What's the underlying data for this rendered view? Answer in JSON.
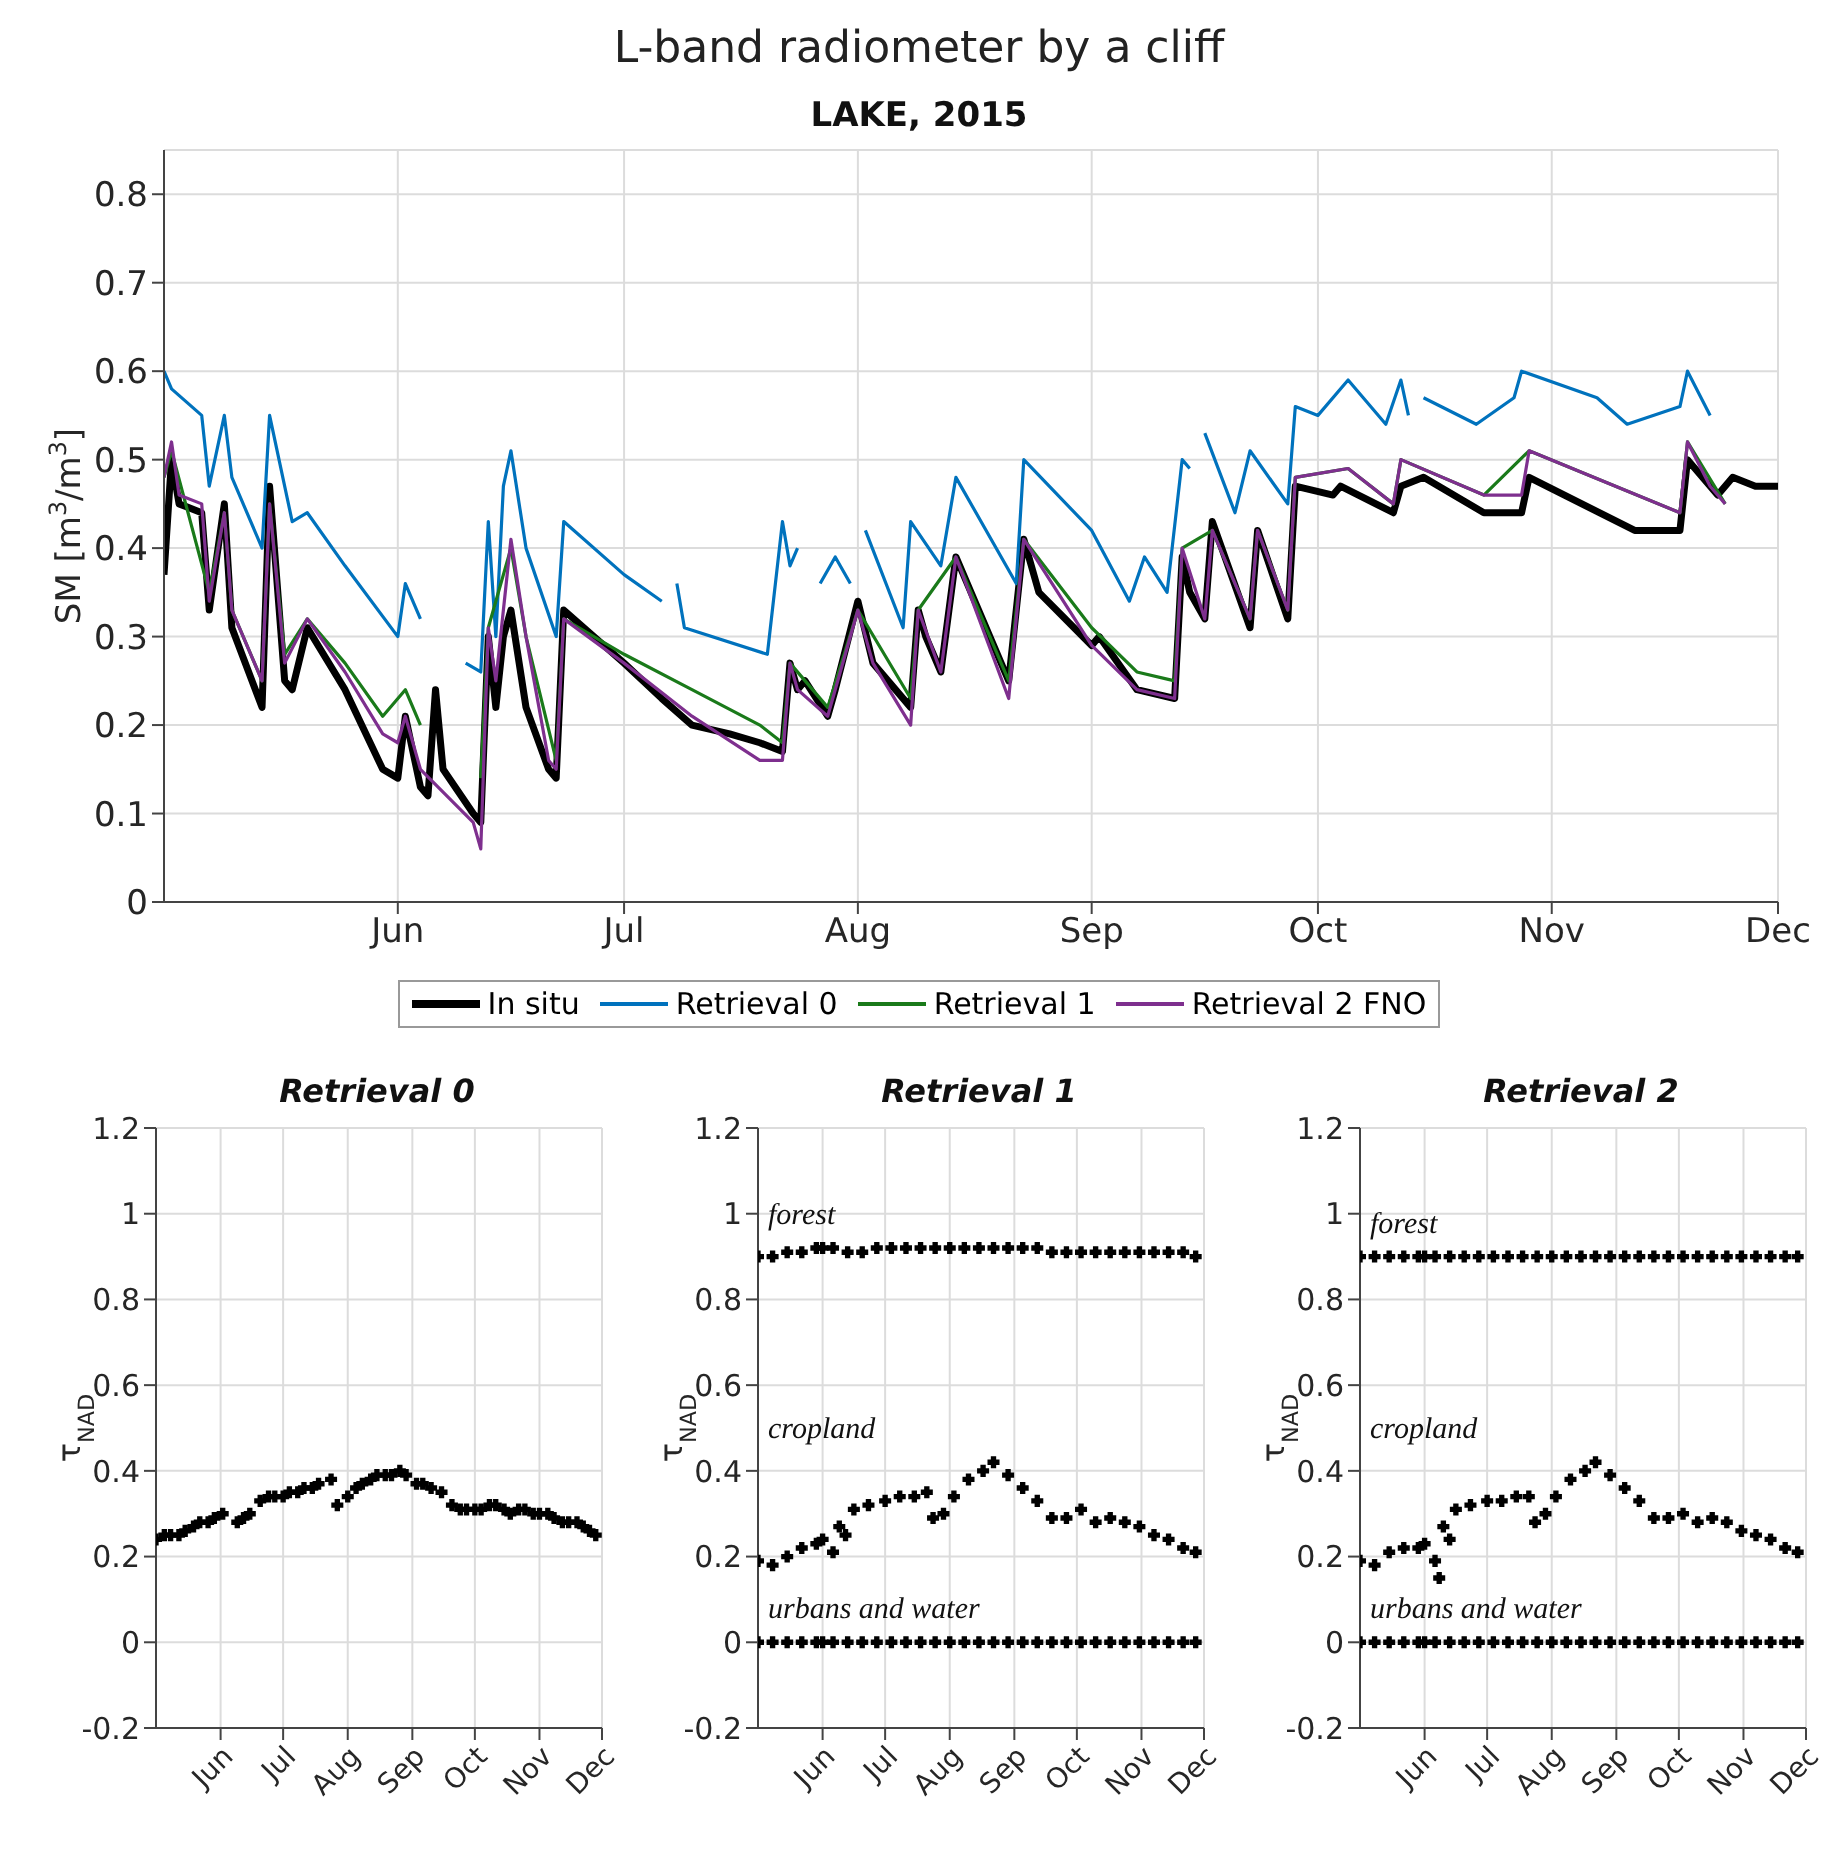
{
  "chart_data": [
    {
      "type": "line",
      "title": "L-band radiometer by a cliff",
      "subtitle": "LAKE, 2015",
      "ylabel": "SM [m$^{3}$/m$^{3}$]",
      "xlim": [
        "2015-05-01",
        "2015-12-01"
      ],
      "xticks": [
        {
          "value": "2015-06-01",
          "label": "Jun"
        },
        {
          "value": "2015-07-01",
          "label": "Jul"
        },
        {
          "value": "2015-08-01",
          "label": "Aug"
        },
        {
          "value": "2015-09-01",
          "label": "Sep"
        },
        {
          "value": "2015-10-01",
          "label": "Oct"
        },
        {
          "value": "2015-11-01",
          "label": "Nov"
        },
        {
          "value": "2015-12-01",
          "label": "Dec"
        }
      ],
      "ylim": [
        0,
        0.85
      ],
      "yticks": [
        0,
        0.1,
        0.2,
        0.3,
        0.4,
        0.5,
        0.6,
        0.7,
        0.8
      ],
      "grid": true,
      "legend": "bottom",
      "series": [
        {
          "name": "In situ",
          "color": "#000000",
          "x": [
            "2015-05-01",
            "2015-05-02",
            "2015-05-03",
            "2015-05-06",
            "2015-05-07",
            "2015-05-09",
            "2015-05-10",
            "2015-05-14",
            "2015-05-15",
            "2015-05-17",
            "2015-05-18",
            "2015-05-20",
            "2015-05-25",
            "2015-05-30",
            "2015-06-01",
            "2015-06-02",
            "2015-06-04",
            "2015-06-05",
            "2015-06-06",
            "2015-06-07",
            "2015-06-11",
            "2015-06-12",
            "2015-06-13",
            "2015-06-14",
            "2015-06-15",
            "2015-06-16",
            "2015-06-18",
            "2015-06-21",
            "2015-06-22",
            "2015-06-23",
            "2015-07-01",
            "2015-07-06",
            "2015-07-10",
            "2015-07-15",
            "2015-07-19",
            "2015-07-22",
            "2015-07-23",
            "2015-07-24",
            "2015-07-25",
            "2015-07-28",
            "2015-07-29",
            "2015-08-01",
            "2015-08-03",
            "2015-08-08",
            "2015-08-09",
            "2015-08-10",
            "2015-08-12",
            "2015-08-14",
            "2015-08-21",
            "2015-08-23",
            "2015-08-25",
            "2015-09-01",
            "2015-09-02",
            "2015-09-07",
            "2015-09-12",
            "2015-09-13",
            "2015-09-14",
            "2015-09-16",
            "2015-09-17",
            "2015-09-22",
            "2015-09-23",
            "2015-09-27",
            "2015-09-28",
            "2015-10-03",
            "2015-10-04",
            "2015-10-11",
            "2015-10-12",
            "2015-10-15",
            "2015-10-23",
            "2015-10-28",
            "2015-10-29",
            "2015-11-12",
            "2015-11-18",
            "2015-11-19",
            "2015-11-23",
            "2015-11-25",
            "2015-11-28",
            "2015-12-01"
          ],
          "values": [
            0.37,
            0.5,
            0.45,
            0.44,
            0.33,
            0.45,
            0.31,
            0.22,
            0.47,
            0.25,
            0.24,
            0.31,
            0.24,
            0.15,
            0.14,
            0.21,
            0.13,
            0.12,
            0.24,
            0.15,
            0.1,
            0.09,
            0.3,
            0.22,
            0.3,
            0.33,
            0.22,
            0.15,
            0.14,
            0.33,
            0.27,
            0.23,
            0.2,
            0.19,
            0.18,
            0.17,
            0.27,
            0.24,
            0.25,
            0.21,
            0.24,
            0.34,
            0.27,
            0.22,
            0.33,
            0.3,
            0.26,
            0.39,
            0.25,
            0.41,
            0.35,
            0.29,
            0.3,
            0.24,
            0.23,
            0.39,
            0.35,
            0.32,
            0.43,
            0.31,
            0.42,
            0.32,
            0.47,
            0.46,
            0.47,
            0.44,
            0.47,
            0.48,
            0.44,
            0.44,
            0.48,
            0.42,
            0.42,
            0.5,
            0.46,
            0.48,
            0.47,
            0.47
          ]
        },
        {
          "name": "Retrieval 0",
          "color": "#0072bd",
          "x": [
            "2015-05-01",
            "2015-05-02",
            "2015-05-06",
            "2015-05-07",
            "2015-05-09",
            "2015-05-10",
            "2015-05-14",
            "2015-05-15",
            "2015-05-18",
            "2015-05-20",
            "2015-05-25",
            "2015-06-01",
            "2015-06-02",
            "2015-06-04",
            "2015-06-07",
            "2015-06-10",
            "2015-06-12",
            "2015-06-13",
            "2015-06-14",
            "2015-06-15",
            "2015-06-16",
            "2015-06-18",
            "2015-06-22",
            "2015-06-23",
            "2015-07-01",
            "2015-07-06",
            "2015-07-07",
            "2015-07-08",
            "2015-07-09",
            "2015-07-20",
            "2015-07-22",
            "2015-07-23",
            "2015-07-24",
            "2015-07-25",
            "2015-07-27",
            "2015-07-29",
            "2015-07-31",
            "2015-08-01",
            "2015-08-02",
            "2015-08-07",
            "2015-08-08",
            "2015-08-12",
            "2015-08-14",
            "2015-08-22",
            "2015-08-23",
            "2015-09-01",
            "2015-09-06",
            "2015-09-08",
            "2015-09-11",
            "2015-09-13",
            "2015-09-14",
            "2015-09-15",
            "2015-09-16",
            "2015-09-20",
            "2015-09-22",
            "2015-09-27",
            "2015-09-28",
            "2015-10-01",
            "2015-10-05",
            "2015-10-10",
            "2015-10-12",
            "2015-10-13",
            "2015-10-14",
            "2015-10-15",
            "2015-10-22",
            "2015-10-27",
            "2015-10-28",
            "2015-11-07",
            "2015-11-11",
            "2015-11-18",
            "2015-11-19",
            "2015-11-22"
          ],
          "values": [
            0.6,
            0.58,
            0.55,
            0.47,
            0.55,
            0.48,
            0.4,
            0.55,
            0.43,
            0.44,
            0.38,
            0.3,
            0.36,
            0.32,
            null,
            0.27,
            0.26,
            0.43,
            0.3,
            0.47,
            0.51,
            0.4,
            0.3,
            0.43,
            0.37,
            0.34,
            null,
            0.36,
            0.31,
            0.28,
            0.43,
            0.38,
            0.4,
            null,
            0.36,
            0.39,
            0.36,
            null,
            0.42,
            0.31,
            0.43,
            0.38,
            0.48,
            0.36,
            0.5,
            0.42,
            0.34,
            0.39,
            0.35,
            0.5,
            0.49,
            null,
            0.53,
            0.44,
            0.51,
            0.45,
            0.56,
            0.55,
            0.59,
            0.54,
            0.59,
            0.55,
            null,
            0.57,
            0.54,
            0.57,
            0.6,
            0.57,
            0.54,
            0.56,
            0.6,
            0.55
          ]
        },
        {
          "name": "Retrieval 1",
          "color": "#1a7a1a",
          "x": [
            "2015-05-01",
            "2015-05-02",
            "2015-05-07",
            "2015-05-09",
            "2015-05-10",
            "2015-05-14",
            "2015-05-15",
            "2015-05-17",
            "2015-05-20",
            "2015-05-25",
            "2015-05-30",
            "2015-06-02",
            "2015-06-04",
            "2015-06-08",
            "2015-06-12",
            "2015-06-13",
            "2015-06-16",
            "2015-06-18",
            "2015-06-22",
            "2015-06-23",
            "2015-07-01",
            "2015-07-10",
            "2015-07-19",
            "2015-07-22",
            "2015-07-23",
            "2015-07-28",
            "2015-08-01",
            "2015-08-08",
            "2015-08-09",
            "2015-08-14",
            "2015-08-21",
            "2015-08-23",
            "2015-09-01",
            "2015-09-07",
            "2015-09-12",
            "2015-09-13",
            "2015-09-17",
            "2015-09-22",
            "2015-09-23",
            "2015-09-27",
            "2015-09-28",
            "2015-10-05",
            "2015-10-11",
            "2015-10-12",
            "2015-10-23",
            "2015-10-29",
            "2015-11-18",
            "2015-11-19",
            "2015-11-24"
          ],
          "values": [
            0.48,
            0.51,
            0.35,
            0.44,
            0.33,
            0.25,
            0.45,
            0.28,
            0.32,
            0.27,
            0.21,
            0.24,
            0.2,
            null,
            0.14,
            0.31,
            0.4,
            0.3,
            0.16,
            0.32,
            0.28,
            0.24,
            0.2,
            0.18,
            0.27,
            0.22,
            0.33,
            0.23,
            0.33,
            0.39,
            0.25,
            0.41,
            0.31,
            0.26,
            0.25,
            0.4,
            0.42,
            0.32,
            0.42,
            0.33,
            0.48,
            0.49,
            0.45,
            0.5,
            0.46,
            0.51,
            0.44,
            0.52,
            0.45
          ]
        },
        {
          "name": "Retrieval 2 FNO",
          "color": "#7e2f8e",
          "x": [
            "2015-05-01",
            "2015-05-02",
            "2015-05-03",
            "2015-05-06",
            "2015-05-07",
            "2015-05-09",
            "2015-05-10",
            "2015-05-14",
            "2015-05-15",
            "2015-05-17",
            "2015-05-20",
            "2015-05-25",
            "2015-05-30",
            "2015-06-01",
            "2015-06-02",
            "2015-06-04",
            "2015-06-11",
            "2015-06-12",
            "2015-06-13",
            "2015-06-14",
            "2015-06-16",
            "2015-06-18",
            "2015-06-21",
            "2015-06-22",
            "2015-06-23",
            "2015-07-01",
            "2015-07-10",
            "2015-07-19",
            "2015-07-22",
            "2015-07-23",
            "2015-07-24",
            "2015-07-28",
            "2015-08-01",
            "2015-08-03",
            "2015-08-08",
            "2015-08-09",
            "2015-08-12",
            "2015-08-14",
            "2015-08-21",
            "2015-08-23",
            "2015-09-01",
            "2015-09-07",
            "2015-09-12",
            "2015-09-13",
            "2015-09-16",
            "2015-09-17",
            "2015-09-22",
            "2015-09-23",
            "2015-09-27",
            "2015-09-28",
            "2015-10-05",
            "2015-10-11",
            "2015-10-12",
            "2015-10-23",
            "2015-10-28",
            "2015-10-29",
            "2015-11-18",
            "2015-11-19",
            "2015-11-22",
            "2015-11-24"
          ],
          "values": [
            0.48,
            0.52,
            0.46,
            0.45,
            0.34,
            0.44,
            0.33,
            0.25,
            0.45,
            0.27,
            0.32,
            0.26,
            0.19,
            0.18,
            0.21,
            0.15,
            0.09,
            0.06,
            0.31,
            0.25,
            0.41,
            0.3,
            0.16,
            0.15,
            0.32,
            0.27,
            0.21,
            0.16,
            0.16,
            0.27,
            0.24,
            0.21,
            0.33,
            0.27,
            0.2,
            0.33,
            0.26,
            0.39,
            0.23,
            0.41,
            0.29,
            0.24,
            0.23,
            0.4,
            0.32,
            0.42,
            0.32,
            0.42,
            0.33,
            0.48,
            0.49,
            0.45,
            0.5,
            0.46,
            0.46,
            0.51,
            0.44,
            0.52,
            0.47,
            0.45
          ]
        }
      ]
    },
    {
      "type": "scatter",
      "title": "Retrieval 0",
      "ylabel": "τ$_{NAD}$",
      "marker": "cross",
      "xlim": [
        "2015-05-01",
        "2015-12-01"
      ],
      "xticks": [
        {
          "value": "2015-06-01",
          "label": "Jun"
        },
        {
          "value": "2015-07-01",
          "label": "Jul"
        },
        {
          "value": "2015-08-01",
          "label": "Aug"
        },
        {
          "value": "2015-09-01",
          "label": "Sep"
        },
        {
          "value": "2015-10-01",
          "label": "Oct"
        },
        {
          "value": "2015-11-01",
          "label": "Nov"
        },
        {
          "value": "2015-12-01",
          "label": "Dec"
        }
      ],
      "ylim": [
        -0.2,
        1.2
      ],
      "yticks": [
        -0.2,
        0,
        0.2,
        0.4,
        0.6,
        0.8,
        1,
        1.2
      ],
      "grid": true,
      "series": [
        {
          "color": "#000000",
          "x": [
            "2015-05-01",
            "2015-05-05",
            "2015-05-08",
            "2015-05-12",
            "2015-05-15",
            "2015-05-19",
            "2015-05-22",
            "2015-05-26",
            "2015-05-29",
            "2015-06-02",
            "2015-06-09",
            "2015-06-12",
            "2015-06-15",
            "2015-06-20",
            "2015-06-24",
            "2015-06-27",
            "2015-07-01",
            "2015-07-04",
            "2015-07-08",
            "2015-07-11",
            "2015-07-15",
            "2015-07-18",
            "2015-07-24",
            "2015-07-27",
            "2015-08-01",
            "2015-08-05",
            "2015-08-08",
            "2015-08-12",
            "2015-08-15",
            "2015-08-19",
            "2015-08-22",
            "2015-08-26",
            "2015-08-29",
            "2015-09-03",
            "2015-09-06",
            "2015-09-10",
            "2015-09-15",
            "2015-09-20",
            "2015-09-24",
            "2015-09-27",
            "2015-10-01",
            "2015-10-04",
            "2015-10-08",
            "2015-10-11",
            "2015-10-15",
            "2015-10-18",
            "2015-10-22",
            "2015-10-25",
            "2015-10-29",
            "2015-11-01",
            "2015-11-05",
            "2015-11-08",
            "2015-11-12",
            "2015-11-15",
            "2015-11-19",
            "2015-11-22",
            "2015-11-25",
            "2015-11-28"
          ],
          "values": [
            0.24,
            0.25,
            0.25,
            0.25,
            0.26,
            0.27,
            0.28,
            0.28,
            0.29,
            0.3,
            0.28,
            0.29,
            0.3,
            0.33,
            0.34,
            0.34,
            0.34,
            0.35,
            0.35,
            0.36,
            0.36,
            0.37,
            0.38,
            0.32,
            0.34,
            0.36,
            0.37,
            0.38,
            0.39,
            0.39,
            0.39,
            0.4,
            0.39,
            0.37,
            0.37,
            0.36,
            0.35,
            0.32,
            0.31,
            0.31,
            0.31,
            0.31,
            0.32,
            0.32,
            0.31,
            0.3,
            0.31,
            0.31,
            0.3,
            0.3,
            0.3,
            0.29,
            0.28,
            0.28,
            0.28,
            0.27,
            0.26,
            0.25
          ]
        }
      ]
    },
    {
      "type": "scatter",
      "title": "Retrieval 1",
      "ylabel": "τ$_{NAD}$",
      "marker": "cross",
      "xlim": [
        "2015-05-01",
        "2015-12-01"
      ],
      "xticks": [
        {
          "value": "2015-06-01",
          "label": "Jun"
        },
        {
          "value": "2015-07-01",
          "label": "Jul"
        },
        {
          "value": "2015-08-01",
          "label": "Aug"
        },
        {
          "value": "2015-09-01",
          "label": "Sep"
        },
        {
          "value": "2015-10-01",
          "label": "Oct"
        },
        {
          "value": "2015-11-01",
          "label": "Nov"
        },
        {
          "value": "2015-12-01",
          "label": "Dec"
        }
      ],
      "ylim": [
        -0.2,
        1.2
      ],
      "yticks": [
        -0.2,
        0,
        0.2,
        0.4,
        0.6,
        0.8,
        1,
        1.2
      ],
      "grid": true,
      "annotations": [
        "forest",
        "cropland",
        "urbans and water"
      ],
      "series": [
        {
          "color": "#000000",
          "x": [
            "2015-05-01",
            "2015-05-08",
            "2015-05-15",
            "2015-05-22",
            "2015-05-29",
            "2015-06-01",
            "2015-06-06",
            "2015-06-13",
            "2015-06-20",
            "2015-06-27",
            "2015-07-04",
            "2015-07-11",
            "2015-07-18",
            "2015-07-25",
            "2015-08-01",
            "2015-08-08",
            "2015-08-15",
            "2015-08-22",
            "2015-08-29",
            "2015-09-05",
            "2015-09-12",
            "2015-09-19",
            "2015-09-26",
            "2015-10-03",
            "2015-10-10",
            "2015-10-17",
            "2015-10-24",
            "2015-10-31",
            "2015-11-07",
            "2015-11-14",
            "2015-11-21",
            "2015-11-27"
          ],
          "values": [
            0.9,
            0.9,
            0.91,
            0.91,
            0.92,
            0.92,
            0.92,
            0.91,
            0.91,
            0.92,
            0.92,
            0.92,
            0.92,
            0.92,
            0.92,
            0.92,
            0.92,
            0.92,
            0.92,
            0.92,
            0.92,
            0.91,
            0.91,
            0.91,
            0.91,
            0.91,
            0.91,
            0.91,
            0.91,
            0.91,
            0.91,
            0.9
          ]
        },
        {
          "color": "#000000",
          "x": [
            "2015-05-01",
            "2015-05-08",
            "2015-05-15",
            "2015-05-22",
            "2015-05-29",
            "2015-06-01",
            "2015-06-06",
            "2015-06-09",
            "2015-06-12",
            "2015-06-16",
            "2015-06-23",
            "2015-07-01",
            "2015-07-08",
            "2015-07-15",
            "2015-07-21",
            "2015-07-24",
            "2015-07-29",
            "2015-08-03",
            "2015-08-10",
            "2015-08-17",
            "2015-08-22",
            "2015-08-29",
            "2015-09-05",
            "2015-09-12",
            "2015-09-19",
            "2015-09-26",
            "2015-10-03",
            "2015-10-10",
            "2015-10-17",
            "2015-10-24",
            "2015-10-31",
            "2015-11-07",
            "2015-11-14",
            "2015-11-21",
            "2015-11-27"
          ],
          "values": [
            0.19,
            0.18,
            0.2,
            0.22,
            0.23,
            0.24,
            0.21,
            0.27,
            0.25,
            0.31,
            0.32,
            0.33,
            0.34,
            0.34,
            0.35,
            0.29,
            0.3,
            0.34,
            0.38,
            0.4,
            0.42,
            0.39,
            0.36,
            0.33,
            0.29,
            0.29,
            0.31,
            0.28,
            0.29,
            0.28,
            0.27,
            0.25,
            0.24,
            0.22,
            0.21
          ]
        },
        {
          "color": "#000000",
          "x": [
            "2015-05-01",
            "2015-05-08",
            "2015-05-15",
            "2015-05-22",
            "2015-05-29",
            "2015-06-01",
            "2015-06-06",
            "2015-06-13",
            "2015-06-20",
            "2015-06-27",
            "2015-07-04",
            "2015-07-11",
            "2015-07-18",
            "2015-07-25",
            "2015-08-01",
            "2015-08-08",
            "2015-08-15",
            "2015-08-22",
            "2015-08-29",
            "2015-09-05",
            "2015-09-12",
            "2015-09-19",
            "2015-09-26",
            "2015-10-03",
            "2015-10-10",
            "2015-10-17",
            "2015-10-24",
            "2015-10-31",
            "2015-11-07",
            "2015-11-14",
            "2015-11-21",
            "2015-11-27"
          ],
          "values": [
            0,
            0,
            0,
            0,
            0,
            0,
            0,
            0,
            0,
            0,
            0,
            0,
            0,
            0,
            0,
            0,
            0,
            0,
            0,
            0,
            0,
            0,
            0,
            0,
            0,
            0,
            0,
            0,
            0,
            0,
            0,
            0
          ]
        }
      ]
    },
    {
      "type": "scatter",
      "title": "Retrieval 2",
      "ylabel": "τ$_{NAD}$",
      "marker": "cross",
      "xlim": [
        "2015-05-01",
        "2015-12-01"
      ],
      "xticks": [
        {
          "value": "2015-06-01",
          "label": "Jun"
        },
        {
          "value": "2015-07-01",
          "label": "Jul"
        },
        {
          "value": "2015-08-01",
          "label": "Aug"
        },
        {
          "value": "2015-09-01",
          "label": "Sep"
        },
        {
          "value": "2015-10-01",
          "label": "Oct"
        },
        {
          "value": "2015-11-01",
          "label": "Nov"
        },
        {
          "value": "2015-12-01",
          "label": "Dec"
        }
      ],
      "ylim": [
        -0.2,
        1.2
      ],
      "yticks": [
        -0.2,
        0,
        0.2,
        0.4,
        0.6,
        0.8,
        1,
        1.2
      ],
      "grid": true,
      "annotations": [
        "forest",
        "cropland",
        "urbans and water"
      ],
      "series": [
        {
          "color": "#000000",
          "x": [
            "2015-05-01",
            "2015-05-08",
            "2015-05-15",
            "2015-05-22",
            "2015-05-29",
            "2015-06-01",
            "2015-06-06",
            "2015-06-13",
            "2015-06-20",
            "2015-06-27",
            "2015-07-04",
            "2015-07-11",
            "2015-07-18",
            "2015-07-25",
            "2015-08-01",
            "2015-08-08",
            "2015-08-15",
            "2015-08-22",
            "2015-08-29",
            "2015-09-05",
            "2015-09-12",
            "2015-09-19",
            "2015-09-26",
            "2015-10-03",
            "2015-10-10",
            "2015-10-17",
            "2015-10-24",
            "2015-10-31",
            "2015-11-07",
            "2015-11-14",
            "2015-11-21",
            "2015-11-27"
          ],
          "values": [
            0.9,
            0.9,
            0.9,
            0.9,
            0.9,
            0.9,
            0.9,
            0.9,
            0.9,
            0.9,
            0.9,
            0.9,
            0.9,
            0.9,
            0.9,
            0.9,
            0.9,
            0.9,
            0.9,
            0.9,
            0.9,
            0.9,
            0.9,
            0.9,
            0.9,
            0.9,
            0.9,
            0.9,
            0.9,
            0.9,
            0.9,
            0.9
          ]
        },
        {
          "color": "#000000",
          "x": [
            "2015-05-01",
            "2015-05-08",
            "2015-05-15",
            "2015-05-22",
            "2015-05-29",
            "2015-06-01",
            "2015-06-06",
            "2015-06-08",
            "2015-06-10",
            "2015-06-13",
            "2015-06-16",
            "2015-06-23",
            "2015-07-01",
            "2015-07-08",
            "2015-07-15",
            "2015-07-21",
            "2015-07-24",
            "2015-07-29",
            "2015-08-03",
            "2015-08-10",
            "2015-08-17",
            "2015-08-22",
            "2015-08-29",
            "2015-09-05",
            "2015-09-12",
            "2015-09-19",
            "2015-09-26",
            "2015-10-03",
            "2015-10-10",
            "2015-10-17",
            "2015-10-24",
            "2015-10-31",
            "2015-11-07",
            "2015-11-14",
            "2015-11-21",
            "2015-11-27"
          ],
          "values": [
            0.19,
            0.18,
            0.21,
            0.22,
            0.22,
            0.23,
            0.19,
            0.15,
            0.27,
            0.24,
            0.31,
            0.32,
            0.33,
            0.33,
            0.34,
            0.34,
            0.28,
            0.3,
            0.34,
            0.38,
            0.4,
            0.42,
            0.39,
            0.36,
            0.33,
            0.29,
            0.29,
            0.3,
            0.28,
            0.29,
            0.28,
            0.26,
            0.25,
            0.24,
            0.22,
            0.21
          ]
        },
        {
          "color": "#000000",
          "x": [
            "2015-05-01",
            "2015-05-08",
            "2015-05-15",
            "2015-05-22",
            "2015-05-29",
            "2015-06-01",
            "2015-06-06",
            "2015-06-13",
            "2015-06-20",
            "2015-06-27",
            "2015-07-04",
            "2015-07-11",
            "2015-07-18",
            "2015-07-25",
            "2015-08-01",
            "2015-08-08",
            "2015-08-15",
            "2015-08-22",
            "2015-08-29",
            "2015-09-05",
            "2015-09-12",
            "2015-09-19",
            "2015-09-26",
            "2015-10-03",
            "2015-10-10",
            "2015-10-17",
            "2015-10-24",
            "2015-10-31",
            "2015-11-07",
            "2015-11-14",
            "2015-11-21",
            "2015-11-27"
          ],
          "values": [
            0,
            0,
            0,
            0,
            0,
            0,
            0,
            0,
            0,
            0,
            0,
            0,
            0,
            0,
            0,
            0,
            0,
            0,
            0,
            0,
            0,
            0,
            0,
            0,
            0,
            0,
            0,
            0,
            0,
            0,
            0,
            0
          ]
        }
      ]
    }
  ]
}
